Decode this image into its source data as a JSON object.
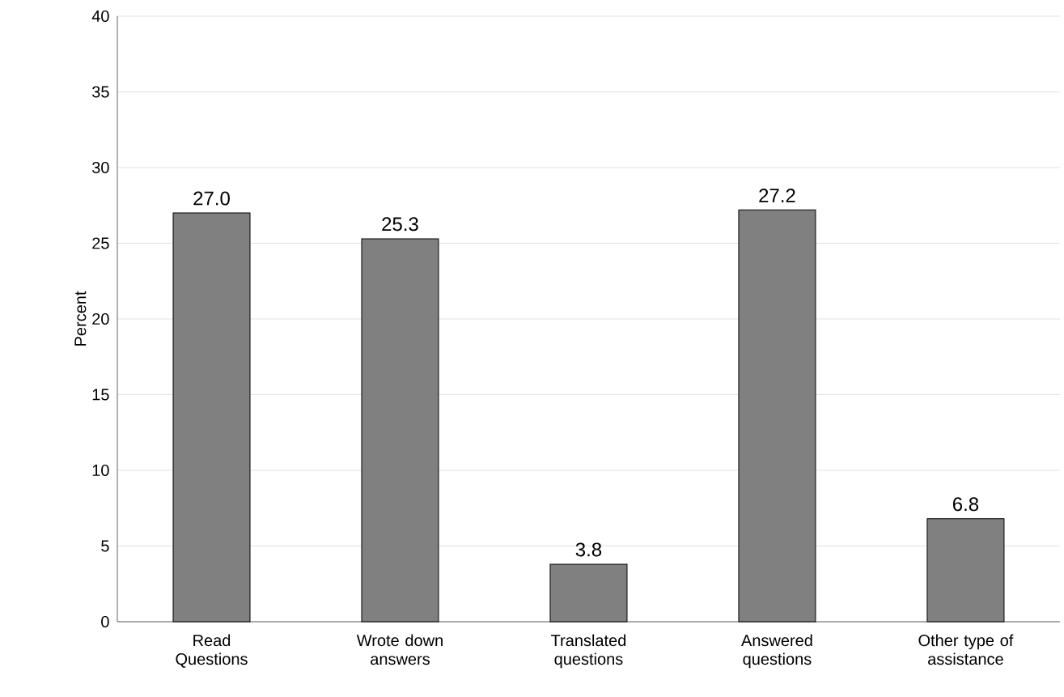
{
  "chart_data": {
    "type": "bar",
    "ylabel": "Percent",
    "categories": [
      "Read Questions",
      "Wrote down answers",
      "Translated questions",
      "Answered questions",
      "Other type of assistance"
    ],
    "values": [
      27.0,
      25.3,
      3.8,
      27.2,
      6.8
    ],
    "value_labels": [
      "27.0",
      "25.3",
      "3.8",
      "27.2",
      "6.8"
    ],
    "color": "#808080",
    "ylim": [
      0,
      40
    ],
    "yticks": [
      0,
      5,
      10,
      15,
      20,
      25,
      30,
      35,
      40
    ],
    "grid": "y"
  }
}
